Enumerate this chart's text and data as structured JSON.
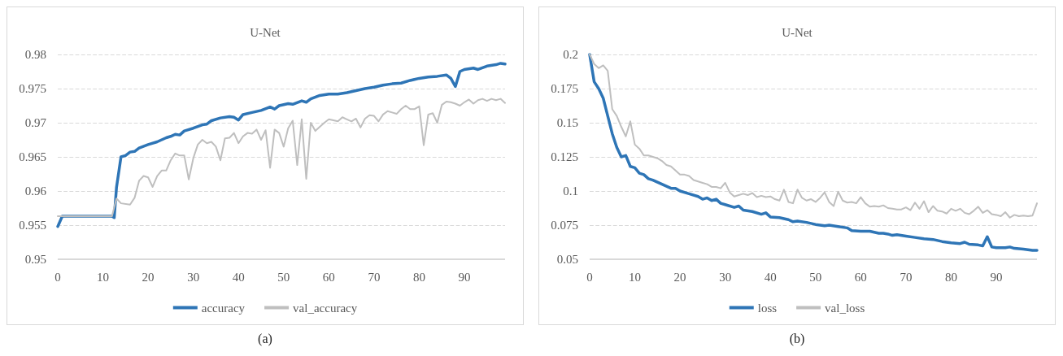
{
  "chart_data": [
    {
      "type": "line",
      "title": "U-Net",
      "annotations": [
        "(a)"
      ],
      "xlim": [
        0,
        99
      ],
      "xticks": [
        0,
        10,
        20,
        30,
        40,
        50,
        60,
        70,
        80,
        90
      ],
      "ylim": [
        0.95,
        0.98
      ],
      "yticks": [
        0.95,
        0.955,
        0.96,
        0.965,
        0.97,
        0.975,
        0.98
      ],
      "grid": "y",
      "legend": "bottom",
      "marker": "none",
      "series": [
        {
          "name": "accuracy",
          "color": "#2e75b6",
          "x": [
            0,
            1,
            12,
            12.5,
            13,
            14,
            15,
            16,
            17,
            18,
            20,
            22,
            24,
            25,
            26,
            27,
            28,
            30,
            32,
            33,
            34,
            36,
            38,
            39,
            40,
            41,
            43,
            45,
            47,
            48,
            49,
            51,
            52,
            54,
            55,
            56,
            58,
            60,
            62,
            64,
            66,
            68,
            70,
            72,
            74,
            76,
            78,
            80,
            82,
            84,
            86,
            87,
            88,
            89,
            90,
            92,
            93,
            95,
            97,
            98,
            99
          ],
          "values": [
            0.9548,
            0.9563,
            0.9563,
            0.9561,
            0.9605,
            0.965,
            0.9652,
            0.9657,
            0.9658,
            0.9663,
            0.9668,
            0.9672,
            0.9678,
            0.968,
            0.9683,
            0.9682,
            0.9688,
            0.9692,
            0.9697,
            0.9698,
            0.9703,
            0.9707,
            0.9709,
            0.9708,
            0.9704,
            0.9712,
            0.9715,
            0.9718,
            0.9723,
            0.972,
            0.9725,
            0.9728,
            0.9727,
            0.9732,
            0.973,
            0.9735,
            0.974,
            0.9742,
            0.9742,
            0.9744,
            0.9747,
            0.975,
            0.9752,
            0.9755,
            0.9757,
            0.9758,
            0.9762,
            0.9765,
            0.9767,
            0.9768,
            0.977,
            0.9765,
            0.9753,
            0.9775,
            0.9778,
            0.978,
            0.9778,
            0.9783,
            0.9785,
            0.9787,
            0.9786
          ]
        },
        {
          "name": "val_accuracy",
          "color": "#bfbfbf",
          "x": [
            0,
            12,
            13,
            14,
            16,
            17,
            18,
            19,
            20,
            21,
            22,
            23,
            24,
            25,
            26,
            27,
            28,
            29,
            30,
            31,
            32,
            33,
            34,
            35,
            36,
            37,
            38,
            39,
            40,
            41,
            42,
            43,
            44,
            45,
            46,
            47,
            48,
            49,
            50,
            51,
            52,
            53,
            54,
            55,
            56,
            57,
            58,
            59,
            60,
            62,
            63,
            64,
            65,
            66,
            67,
            68,
            69,
            70,
            71,
            72,
            73,
            74,
            75,
            76,
            77,
            78,
            79,
            80,
            81,
            82,
            83,
            84,
            85,
            86,
            87,
            88,
            89,
            90,
            91,
            92,
            93,
            94,
            95,
            96,
            97,
            98,
            99
          ],
          "values": [
            0.9563,
            0.9563,
            0.9589,
            0.9582,
            0.958,
            0.959,
            0.9615,
            0.9622,
            0.962,
            0.9606,
            0.9622,
            0.963,
            0.963,
            0.9645,
            0.9655,
            0.9652,
            0.9652,
            0.9617,
            0.9648,
            0.9668,
            0.9675,
            0.967,
            0.9672,
            0.9665,
            0.9645,
            0.9677,
            0.9678,
            0.9685,
            0.967,
            0.968,
            0.9685,
            0.9684,
            0.969,
            0.9675,
            0.9689,
            0.9634,
            0.969,
            0.9685,
            0.9665,
            0.9692,
            0.9703,
            0.9638,
            0.9705,
            0.9618,
            0.97,
            0.9688,
            0.9694,
            0.97,
            0.9705,
            0.9702,
            0.9708,
            0.9705,
            0.9702,
            0.9706,
            0.9693,
            0.9706,
            0.9711,
            0.971,
            0.9702,
            0.9712,
            0.9717,
            0.9715,
            0.9713,
            0.972,
            0.9725,
            0.972,
            0.972,
            0.9724,
            0.9667,
            0.9712,
            0.9714,
            0.97,
            0.9726,
            0.9731,
            0.973,
            0.9728,
            0.9725,
            0.973,
            0.9734,
            0.9728,
            0.9733,
            0.9735,
            0.9732,
            0.9735,
            0.9733,
            0.9735,
            0.9729
          ]
        }
      ]
    },
    {
      "type": "line",
      "title": "U-Net",
      "annotations": [
        "(b)"
      ],
      "xlim": [
        0,
        99
      ],
      "xticks": [
        0,
        10,
        20,
        30,
        40,
        50,
        60,
        70,
        80,
        90
      ],
      "ylim": [
        0.05,
        0.2
      ],
      "yticks": [
        0.05,
        0.075,
        0.1,
        0.125,
        0.15,
        0.175,
        0.2
      ],
      "grid": "y",
      "legend": "bottom",
      "marker": "none",
      "series": [
        {
          "name": "loss",
          "color": "#2e75b6",
          "x": [
            0,
            1,
            2,
            3,
            4,
            5,
            6,
            7,
            8,
            9,
            10,
            11,
            12,
            13,
            14,
            16,
            18,
            19,
            20,
            22,
            24,
            25,
            26,
            27,
            28,
            29,
            30,
            32,
            33,
            34,
            36,
            38,
            39,
            40,
            42,
            44,
            45,
            46,
            48,
            50,
            52,
            53,
            55,
            57,
            58,
            60,
            62,
            64,
            65,
            66,
            67,
            68,
            70,
            72,
            74,
            76,
            78,
            80,
            82,
            83,
            84,
            86,
            87,
            88,
            89,
            90,
            92,
            93,
            94,
            96,
            98,
            99
          ],
          "values": [
            0.2,
            0.18,
            0.175,
            0.168,
            0.155,
            0.142,
            0.132,
            0.125,
            0.126,
            0.118,
            0.117,
            0.113,
            0.112,
            0.109,
            0.108,
            0.105,
            0.102,
            0.102,
            0.1,
            0.098,
            0.096,
            0.094,
            0.095,
            0.093,
            0.094,
            0.091,
            0.09,
            0.088,
            0.089,
            0.086,
            0.085,
            0.083,
            0.084,
            0.081,
            0.0805,
            0.079,
            0.0775,
            0.078,
            0.077,
            0.0755,
            0.0745,
            0.075,
            0.074,
            0.073,
            0.071,
            0.0705,
            0.0705,
            0.069,
            0.069,
            0.0685,
            0.0675,
            0.068,
            0.067,
            0.066,
            0.065,
            0.0645,
            0.063,
            0.062,
            0.0615,
            0.0625,
            0.061,
            0.0605,
            0.0598,
            0.0665,
            0.059,
            0.0585,
            0.0585,
            0.059,
            0.058,
            0.0575,
            0.0565,
            0.0565
          ]
        },
        {
          "name": "val_loss",
          "color": "#bfbfbf",
          "x": [
            0,
            1,
            2,
            3,
            4,
            5,
            6,
            7,
            8,
            9,
            10,
            11,
            12,
            13,
            14,
            15,
            16,
            17,
            18,
            19,
            20,
            21,
            22,
            23,
            24,
            25,
            26,
            27,
            28,
            29,
            30,
            31,
            32,
            33,
            34,
            35,
            36,
            37,
            38,
            39,
            40,
            41,
            42,
            43,
            44,
            45,
            46,
            47,
            48,
            49,
            50,
            51,
            52,
            53,
            54,
            55,
            56,
            57,
            58,
            59,
            60,
            61,
            62,
            63,
            64,
            65,
            66,
            67,
            68,
            69,
            70,
            71,
            72,
            73,
            74,
            75,
            76,
            77,
            78,
            79,
            80,
            81,
            82,
            83,
            84,
            85,
            86,
            87,
            88,
            89,
            90,
            91,
            92,
            93,
            94,
            95,
            96,
            97,
            98,
            99
          ],
          "values": [
            0.2,
            0.193,
            0.19,
            0.192,
            0.188,
            0.16,
            0.155,
            0.147,
            0.14,
            0.151,
            0.134,
            0.131,
            0.126,
            0.126,
            0.125,
            0.124,
            0.122,
            0.119,
            0.118,
            0.115,
            0.112,
            0.112,
            0.111,
            0.108,
            0.107,
            0.106,
            0.105,
            0.103,
            0.103,
            0.102,
            0.106,
            0.099,
            0.096,
            0.097,
            0.098,
            0.097,
            0.0985,
            0.0955,
            0.0965,
            0.0955,
            0.096,
            0.094,
            0.093,
            0.101,
            0.092,
            0.091,
            0.101,
            0.095,
            0.093,
            0.094,
            0.092,
            0.095,
            0.099,
            0.092,
            0.089,
            0.0995,
            0.093,
            0.0915,
            0.092,
            0.091,
            0.0955,
            0.091,
            0.0885,
            0.089,
            0.0885,
            0.0895,
            0.0875,
            0.087,
            0.0865,
            0.0865,
            0.088,
            0.086,
            0.0915,
            0.087,
            0.0925,
            0.0845,
            0.089,
            0.0855,
            0.085,
            0.0835,
            0.087,
            0.0855,
            0.087,
            0.084,
            0.083,
            0.0855,
            0.0885,
            0.084,
            0.086,
            0.083,
            0.0825,
            0.0815,
            0.0845,
            0.0805,
            0.0825,
            0.0815,
            0.082,
            0.0815,
            0.082,
            0.091
          ]
        }
      ]
    }
  ]
}
